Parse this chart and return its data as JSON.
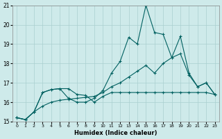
{
  "xlabel": "Humidex (Indice chaleur)",
  "xlim": [
    -0.5,
    23.5
  ],
  "ylim": [
    15,
    21
  ],
  "yticks": [
    15,
    16,
    17,
    18,
    19,
    20,
    21
  ],
  "xticks": [
    0,
    1,
    2,
    3,
    4,
    5,
    6,
    7,
    8,
    9,
    10,
    11,
    12,
    13,
    14,
    15,
    16,
    17,
    18,
    19,
    20,
    21,
    22,
    23
  ],
  "background_color": "#ceeaea",
  "grid_color": "#aacfcf",
  "line_color": "#006060",
  "line1": [
    15.2,
    15.1,
    15.5,
    16.5,
    16.65,
    16.7,
    16.7,
    16.4,
    16.35,
    16.0,
    16.3,
    16.5,
    16.5,
    16.5,
    16.5,
    16.5,
    16.5,
    16.5,
    16.5,
    16.5,
    16.5,
    16.5,
    16.5,
    16.4
  ],
  "line2": [
    15.2,
    15.1,
    15.5,
    16.5,
    16.65,
    16.7,
    16.2,
    16.0,
    16.0,
    16.2,
    16.6,
    17.5,
    18.1,
    19.35,
    19.0,
    21.0,
    19.6,
    19.5,
    18.3,
    19.4,
    17.5,
    16.8,
    17.0,
    16.4
  ],
  "line3": [
    15.2,
    15.1,
    15.5,
    15.8,
    16.0,
    16.1,
    16.15,
    16.2,
    16.25,
    16.3,
    16.5,
    16.8,
    17.0,
    17.3,
    17.6,
    17.9,
    17.5,
    18.0,
    18.3,
    18.5,
    17.4,
    16.8,
    17.0,
    16.4
  ]
}
